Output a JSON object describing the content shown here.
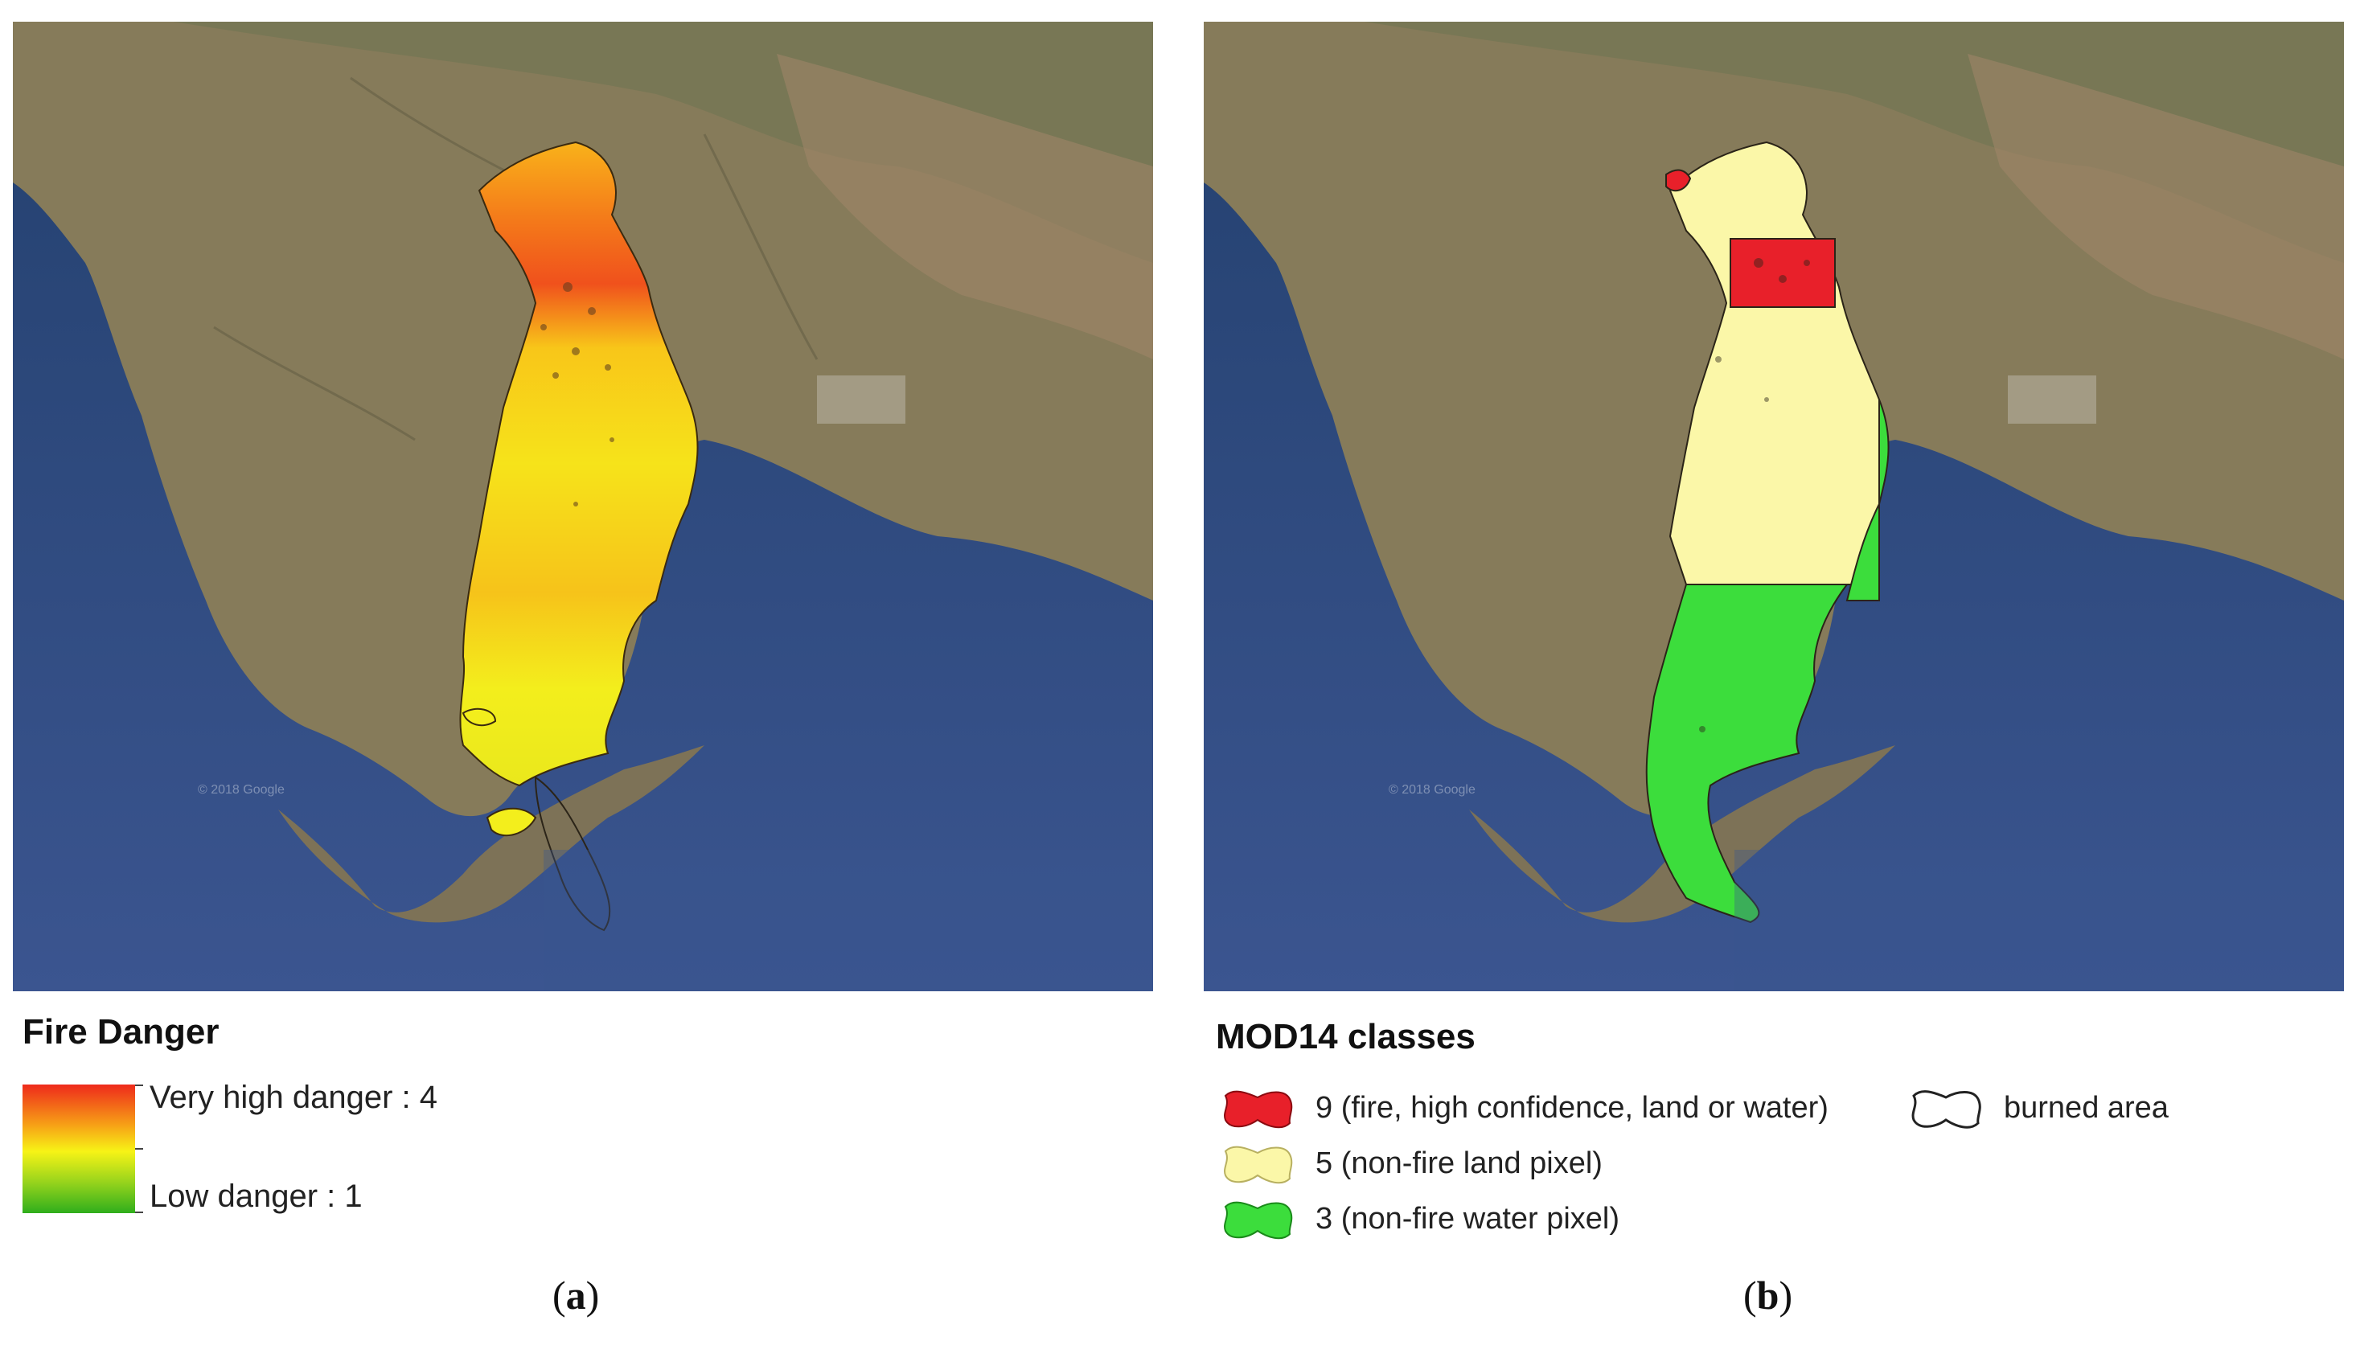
{
  "panel_a": {
    "legend_title": "Fire Danger",
    "ramp": {
      "high_label": "Very high danger : 4",
      "low_label": "Low danger : 1",
      "colors": [
        "#ee2a1b",
        "#f7a316",
        "#f7f316",
        "#9bd51c",
        "#2fae1c"
      ]
    },
    "caption_open": "(",
    "caption_letter": "a",
    "caption_close": ")"
  },
  "panel_b": {
    "legend_title": "MOD14 classes",
    "classes": [
      {
        "label": "9 (fire, high confidence, land or water)",
        "color": "#e8202a",
        "icon": "red-swatch-icon"
      },
      {
        "label": "5 (non-fire land pixel)",
        "color": "#fbf7a8",
        "icon": "yellow-swatch-icon"
      },
      {
        "label": "3 (non-fire water pixel)",
        "color": "#3cdd3c",
        "icon": "green-swatch-icon"
      },
      {
        "label": "burned area",
        "color": "#ffffff",
        "icon": "outline-swatch-icon"
      }
    ],
    "caption_open": "(",
    "caption_letter": "b",
    "caption_close": ")"
  },
  "map": {
    "attribution": "© 2018 Google",
    "sea_color": "#33508a",
    "land_color": "#8a7f5f"
  }
}
